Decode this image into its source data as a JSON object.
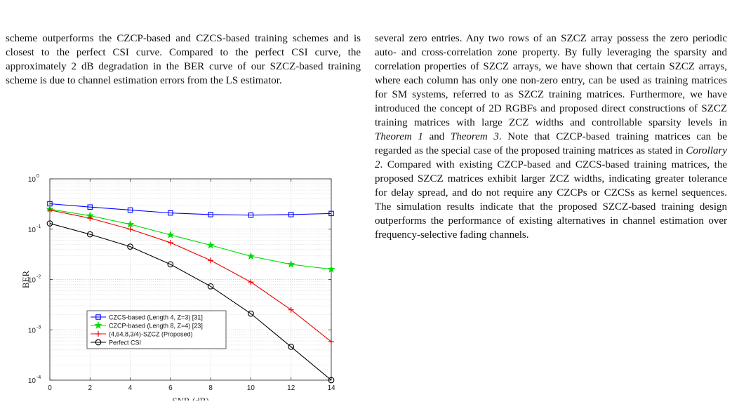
{
  "left_paragraph": "scheme outperforms the CZCP-based and CZCS-based training schemes and is closest to the perfect CSI curve. Compared to the perfect CSI curve, the approximately 2 dB degradation in the BER curve of our SZCZ-based training scheme is due to channel estimation errors from the LS estimator.",
  "right_paragraph": {
    "p1": "several zero entries. Any two rows of an SZCZ array possess the zero periodic auto- and cross-correlation zone property. By fully leveraging the sparsity and correlation properties of SZCZ arrays, we have shown that certain SZCZ arrays, where each column has only one non-zero entry, can be used as training matrices for SM systems, referred to as SZCZ training matrices. Furthermore, we have introduced the concept of 2D RGBFs and proposed direct constructions of SZCZ training matrices with large ZCZ widths and controllable sparsity levels in ",
    "em1": "Theorem 1",
    "p2": " and ",
    "em2": "Theorem 3",
    "p3": ". Note that CZCP-based training matrices can be regarded as the special case of the proposed training matrices as stated in ",
    "em3": "Corollary 2",
    "p4": ". Compared with existing CZCP-based and CZCS-based training matrices, the proposed SZCZ matrices exhibit larger ZCZ widths, indicating greater tolerance for delay spread, and do not require any CZCPs or CZCSs as kernel sequences. The simulation results indicate that the proposed SZCZ-based training design outperforms the performance of existing alternatives in channel estimation over frequency-selective fading channels."
  },
  "chart_data": {
    "type": "line",
    "xlabel": "SNR (dB)",
    "ylabel": "BER",
    "xlim": [
      0,
      14
    ],
    "ylim": [
      0.0001,
      1
    ],
    "yscale": "log",
    "grid": true,
    "legend_position": "bottom-left",
    "xticks": [
      "0",
      "2",
      "4",
      "6",
      "8",
      "10",
      "12",
      "14"
    ],
    "yticks": [
      {
        "base": "10",
        "exp": "0"
      },
      {
        "base": "10",
        "exp": "-1"
      },
      {
        "base": "10",
        "exp": "-2"
      },
      {
        "base": "10",
        "exp": "-3"
      },
      {
        "base": "10",
        "exp": "-4"
      }
    ],
    "x": [
      0,
      2,
      4,
      6,
      8,
      10,
      12,
      14
    ],
    "series": [
      {
        "name": "CZCS-based (Length 4, Z=3) [31]",
        "color": "#0000ff",
        "marker": "square",
        "values": [
          0.32,
          0.275,
          0.24,
          0.21,
          0.195,
          0.19,
          0.195,
          0.205
        ]
      },
      {
        "name": "CZCP-based (Length 8, Z=4) [23]",
        "color": "#00dd00",
        "marker": "star",
        "values": [
          0.25,
          0.185,
          0.125,
          0.077,
          0.048,
          0.029,
          0.02,
          0.016
        ]
      },
      {
        "name": "(4,64,8,3/4)-SZCZ (Proposed)",
        "color": "#ee0000",
        "marker": "plus",
        "values": [
          0.24,
          0.165,
          0.1,
          0.054,
          0.024,
          0.0089,
          0.0025,
          0.00058
        ]
      },
      {
        "name": "Perfect CSI",
        "color": "#000000",
        "marker": "circle",
        "values": [
          0.13,
          0.079,
          0.045,
          0.02,
          0.0073,
          0.0021,
          0.00046,
          0.0001
        ]
      }
    ]
  }
}
